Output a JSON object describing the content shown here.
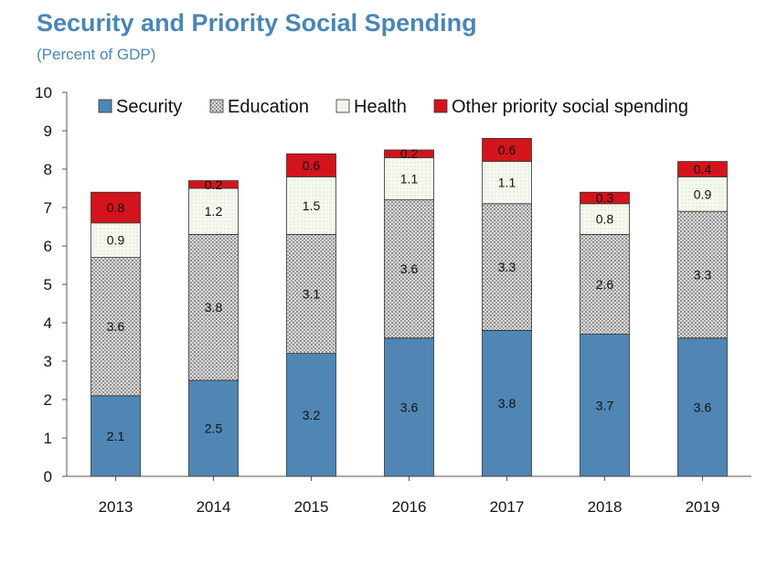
{
  "chart_data": {
    "type": "bar",
    "stacked": true,
    "title": "Security and Priority Social Spending",
    "subtitle": "(Percent of GDP)",
    "categories": [
      "2013",
      "2014",
      "2015",
      "2016",
      "2017",
      "2018",
      "2019"
    ],
    "series": [
      {
        "name": "Security",
        "values": [
          2.1,
          2.5,
          3.2,
          3.6,
          3.8,
          3.7,
          3.6
        ],
        "labels": [
          "2.1",
          "2.5",
          "3.2",
          "3.6",
          "3.8",
          "3.7",
          "3.6"
        ],
        "color": "#4f86b3",
        "pattern": "solid"
      },
      {
        "name": "Education",
        "values": [
          3.6,
          3.8,
          3.1,
          3.6,
          3.3,
          2.6,
          3.3
        ],
        "labels": [
          "3.6",
          "3.8",
          "3.1",
          "3.6",
          "3.3",
          "2.6",
          "3.3"
        ],
        "color": "#9a9a9a",
        "pattern": "dots"
      },
      {
        "name": "Health",
        "values": [
          0.9,
          1.2,
          1.5,
          1.1,
          1.1,
          0.8,
          0.9
        ],
        "labels": [
          "0.9",
          "1.2",
          "1.5",
          "1.1",
          "1.1",
          "0.8",
          "0.9"
        ],
        "color": "#eef3e6",
        "pattern": "light"
      },
      {
        "name": "Other priority social spending",
        "values": [
          0.8,
          0.2,
          0.6,
          0.2,
          0.6,
          0.3,
          0.4
        ],
        "labels": [
          "0.8",
          "0.2",
          "0.6",
          "0.2",
          "0.6",
          "0.3",
          "0.4"
        ],
        "color": "#d3141c",
        "pattern": "solid"
      }
    ],
    "ylim": [
      0,
      10
    ],
    "yticks": [
      "0",
      "1",
      "2",
      "3",
      "4",
      "5",
      "6",
      "7",
      "8",
      "9",
      "10"
    ],
    "legend_position": "top",
    "grid": false
  }
}
